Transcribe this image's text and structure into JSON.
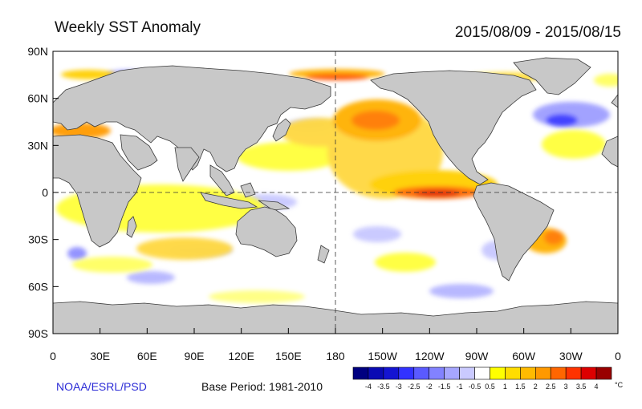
{
  "header": {
    "title": "Weekly SST Anomaly",
    "date_range": "2015/08/09 - 2015/08/15"
  },
  "footer": {
    "credit": "NOAA/ESRL/PSD",
    "base_period": "Base Period: 1981-2010"
  },
  "axes": {
    "lat_ticks": [
      "90N",
      "60N",
      "30N",
      "0",
      "30S",
      "60S",
      "90S"
    ],
    "lon_ticks": [
      "0",
      "30E",
      "60E",
      "90E",
      "120E",
      "150E",
      "180",
      "150W",
      "120W",
      "90W",
      "60W",
      "30W",
      "0"
    ]
  },
  "colorbar": {
    "unit": "°C",
    "labels": [
      "-4",
      "-3.5",
      "-3",
      "-2.5",
      "-2",
      "-1.5",
      "-1",
      "-0.5",
      "0.5",
      "1",
      "1.5",
      "2",
      "2.5",
      "3",
      "3.5",
      "4"
    ],
    "colors": [
      "#000080",
      "#0a0ab4",
      "#1414d2",
      "#3232ff",
      "#5a5aff",
      "#8282ff",
      "#a6a6ff",
      "#cacaff",
      "#ffffff",
      "#ffff00",
      "#ffdd00",
      "#ffbb00",
      "#ff9900",
      "#ff6600",
      "#ff3300",
      "#dd0000",
      "#990000"
    ]
  },
  "colors": {
    "ocean": "#ffffff",
    "land": "#c8c8c8",
    "coast": "#3a3a3a"
  }
}
